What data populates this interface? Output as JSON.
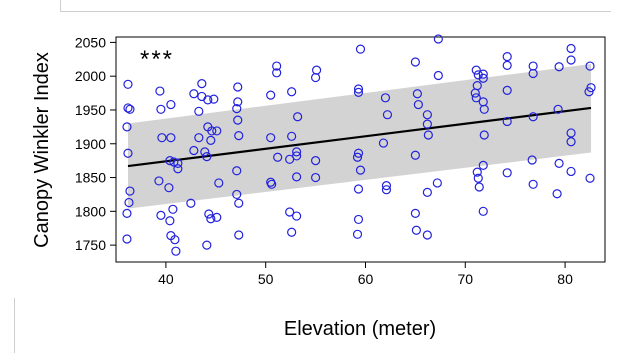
{
  "chart_data": {
    "type": "scatter",
    "title": "",
    "xlabel": "Elevation (meter)",
    "ylabel": "Canopy Winkler Index",
    "annotation": "***",
    "xlim": [
      35,
      84
    ],
    "ylim": [
      1725,
      2058
    ],
    "x_ticks": [
      40,
      50,
      60,
      70,
      80
    ],
    "y_ticks": [
      1750,
      1800,
      1850,
      1900,
      1950,
      2000,
      2050
    ],
    "grid": false,
    "legend": "none",
    "colors": {
      "points": "#2222dd",
      "fit_line": "#000000",
      "band": "#d3d3d3"
    },
    "fit_line": {
      "x": [
        36.2,
        82.6
      ],
      "y": [
        1867,
        1953
      ]
    },
    "confidence_band": {
      "x": [
        36.2,
        82.6
      ],
      "lower": [
        1804,
        1887
      ],
      "upper": [
        1930,
        2018
      ]
    },
    "points": [
      {
        "x": 36.2,
        "y": 1988
      },
      {
        "x": 36.2,
        "y": 1953
      },
      {
        "x": 36.4,
        "y": 1951
      },
      {
        "x": 36.1,
        "y": 1925
      },
      {
        "x": 36.2,
        "y": 1886
      },
      {
        "x": 36.4,
        "y": 1830
      },
      {
        "x": 36.3,
        "y": 1813
      },
      {
        "x": 36.1,
        "y": 1797
      },
      {
        "x": 36.1,
        "y": 1759
      },
      {
        "x": 39.4,
        "y": 1978
      },
      {
        "x": 39.5,
        "y": 1951
      },
      {
        "x": 39.6,
        "y": 1909
      },
      {
        "x": 39.3,
        "y": 1845
      },
      {
        "x": 39.5,
        "y": 1794
      },
      {
        "x": 40.5,
        "y": 1958
      },
      {
        "x": 40.5,
        "y": 1909
      },
      {
        "x": 40.4,
        "y": 1875
      },
      {
        "x": 40.8,
        "y": 1873
      },
      {
        "x": 41.2,
        "y": 1871
      },
      {
        "x": 41.2,
        "y": 1863
      },
      {
        "x": 40.3,
        "y": 1835
      },
      {
        "x": 40.7,
        "y": 1803
      },
      {
        "x": 40.4,
        "y": 1786
      },
      {
        "x": 40.5,
        "y": 1764
      },
      {
        "x": 40.9,
        "y": 1758
      },
      {
        "x": 41.0,
        "y": 1741
      },
      {
        "x": 42.8,
        "y": 1974
      },
      {
        "x": 42.8,
        "y": 1890
      },
      {
        "x": 42.5,
        "y": 1812
      },
      {
        "x": 43.6,
        "y": 1989
      },
      {
        "x": 43.6,
        "y": 1970
      },
      {
        "x": 43.3,
        "y": 1948
      },
      {
        "x": 43.3,
        "y": 1909
      },
      {
        "x": 44.2,
        "y": 1965
      },
      {
        "x": 43.9,
        "y": 1888
      },
      {
        "x": 44.1,
        "y": 1881
      },
      {
        "x": 44.2,
        "y": 1925
      },
      {
        "x": 44.6,
        "y": 1919
      },
      {
        "x": 44.5,
        "y": 1905
      },
      {
        "x": 44.3,
        "y": 1796
      },
      {
        "x": 44.5,
        "y": 1789
      },
      {
        "x": 44.8,
        "y": 1966
      },
      {
        "x": 45.1,
        "y": 1919
      },
      {
        "x": 45.3,
        "y": 1842
      },
      {
        "x": 45.1,
        "y": 1791
      },
      {
        "x": 44.1,
        "y": 1750
      },
      {
        "x": 47.2,
        "y": 1984
      },
      {
        "x": 47.2,
        "y": 1962
      },
      {
        "x": 47.1,
        "y": 1952
      },
      {
        "x": 47.2,
        "y": 1935
      },
      {
        "x": 47.3,
        "y": 1912
      },
      {
        "x": 47.1,
        "y": 1860
      },
      {
        "x": 47.1,
        "y": 1825
      },
      {
        "x": 47.3,
        "y": 1812
      },
      {
        "x": 47.3,
        "y": 1765
      },
      {
        "x": 50.5,
        "y": 1972
      },
      {
        "x": 50.5,
        "y": 1909
      },
      {
        "x": 50.5,
        "y": 1843
      },
      {
        "x": 50.6,
        "y": 1840
      },
      {
        "x": 51.1,
        "y": 2015
      },
      {
        "x": 51.1,
        "y": 2005
      },
      {
        "x": 51.2,
        "y": 1880
      },
      {
        "x": 52.6,
        "y": 1977
      },
      {
        "x": 52.6,
        "y": 1911
      },
      {
        "x": 52.4,
        "y": 1877
      },
      {
        "x": 52.4,
        "y": 1799
      },
      {
        "x": 52.6,
        "y": 1769
      },
      {
        "x": 53.2,
        "y": 1940
      },
      {
        "x": 53.1,
        "y": 1888
      },
      {
        "x": 53.1,
        "y": 1882
      },
      {
        "x": 53.1,
        "y": 1851
      },
      {
        "x": 53.1,
        "y": 1793
      },
      {
        "x": 55.1,
        "y": 2009
      },
      {
        "x": 55.0,
        "y": 1998
      },
      {
        "x": 55.0,
        "y": 1875
      },
      {
        "x": 55.0,
        "y": 1850
      },
      {
        "x": 59.3,
        "y": 1981
      },
      {
        "x": 59.3,
        "y": 1976
      },
      {
        "x": 59.5,
        "y": 2040
      },
      {
        "x": 59.3,
        "y": 1886
      },
      {
        "x": 59.2,
        "y": 1880
      },
      {
        "x": 59.5,
        "y": 1861
      },
      {
        "x": 59.3,
        "y": 1833
      },
      {
        "x": 59.3,
        "y": 1788
      },
      {
        "x": 59.2,
        "y": 1766
      },
      {
        "x": 62.0,
        "y": 1968
      },
      {
        "x": 62.2,
        "y": 1943
      },
      {
        "x": 61.8,
        "y": 1901
      },
      {
        "x": 62.1,
        "y": 1838
      },
      {
        "x": 62.1,
        "y": 1832
      },
      {
        "x": 65.0,
        "y": 2021
      },
      {
        "x": 65.2,
        "y": 1974
      },
      {
        "x": 65.3,
        "y": 1958
      },
      {
        "x": 65.0,
        "y": 1883
      },
      {
        "x": 65.0,
        "y": 1797
      },
      {
        "x": 65.1,
        "y": 1772
      },
      {
        "x": 66.2,
        "y": 1943
      },
      {
        "x": 66.2,
        "y": 1929
      },
      {
        "x": 66.3,
        "y": 1913
      },
      {
        "x": 66.2,
        "y": 1828
      },
      {
        "x": 66.2,
        "y": 1765
      },
      {
        "x": 67.3,
        "y": 2055
      },
      {
        "x": 67.3,
        "y": 2001
      },
      {
        "x": 67.2,
        "y": 1842
      },
      {
        "x": 71.1,
        "y": 2009
      },
      {
        "x": 71.3,
        "y": 2002
      },
      {
        "x": 71.2,
        "y": 1986
      },
      {
        "x": 71.0,
        "y": 1975
      },
      {
        "x": 71.1,
        "y": 1968
      },
      {
        "x": 71.2,
        "y": 1858
      },
      {
        "x": 71.3,
        "y": 1849
      },
      {
        "x": 71.4,
        "y": 1836
      },
      {
        "x": 71.8,
        "y": 2003
      },
      {
        "x": 71.8,
        "y": 1997
      },
      {
        "x": 71.8,
        "y": 1962
      },
      {
        "x": 71.9,
        "y": 1951
      },
      {
        "x": 71.9,
        "y": 1913
      },
      {
        "x": 71.8,
        "y": 1868
      },
      {
        "x": 71.8,
        "y": 1800
      },
      {
        "x": 74.2,
        "y": 2029
      },
      {
        "x": 74.2,
        "y": 2016
      },
      {
        "x": 74.2,
        "y": 1979
      },
      {
        "x": 74.2,
        "y": 1933
      },
      {
        "x": 74.2,
        "y": 1857
      },
      {
        "x": 76.8,
        "y": 2015
      },
      {
        "x": 76.8,
        "y": 2004
      },
      {
        "x": 76.8,
        "y": 1940
      },
      {
        "x": 76.7,
        "y": 1876
      },
      {
        "x": 76.8,
        "y": 1840
      },
      {
        "x": 79.4,
        "y": 2014
      },
      {
        "x": 79.3,
        "y": 1951
      },
      {
        "x": 79.4,
        "y": 1871
      },
      {
        "x": 79.2,
        "y": 1826
      },
      {
        "x": 80.6,
        "y": 2041
      },
      {
        "x": 80.6,
        "y": 2024
      },
      {
        "x": 80.6,
        "y": 1916
      },
      {
        "x": 80.6,
        "y": 1903
      },
      {
        "x": 80.6,
        "y": 1859
      },
      {
        "x": 82.5,
        "y": 2015
      },
      {
        "x": 82.6,
        "y": 1983
      },
      {
        "x": 82.4,
        "y": 1977
      },
      {
        "x": 82.5,
        "y": 1849
      }
    ]
  }
}
